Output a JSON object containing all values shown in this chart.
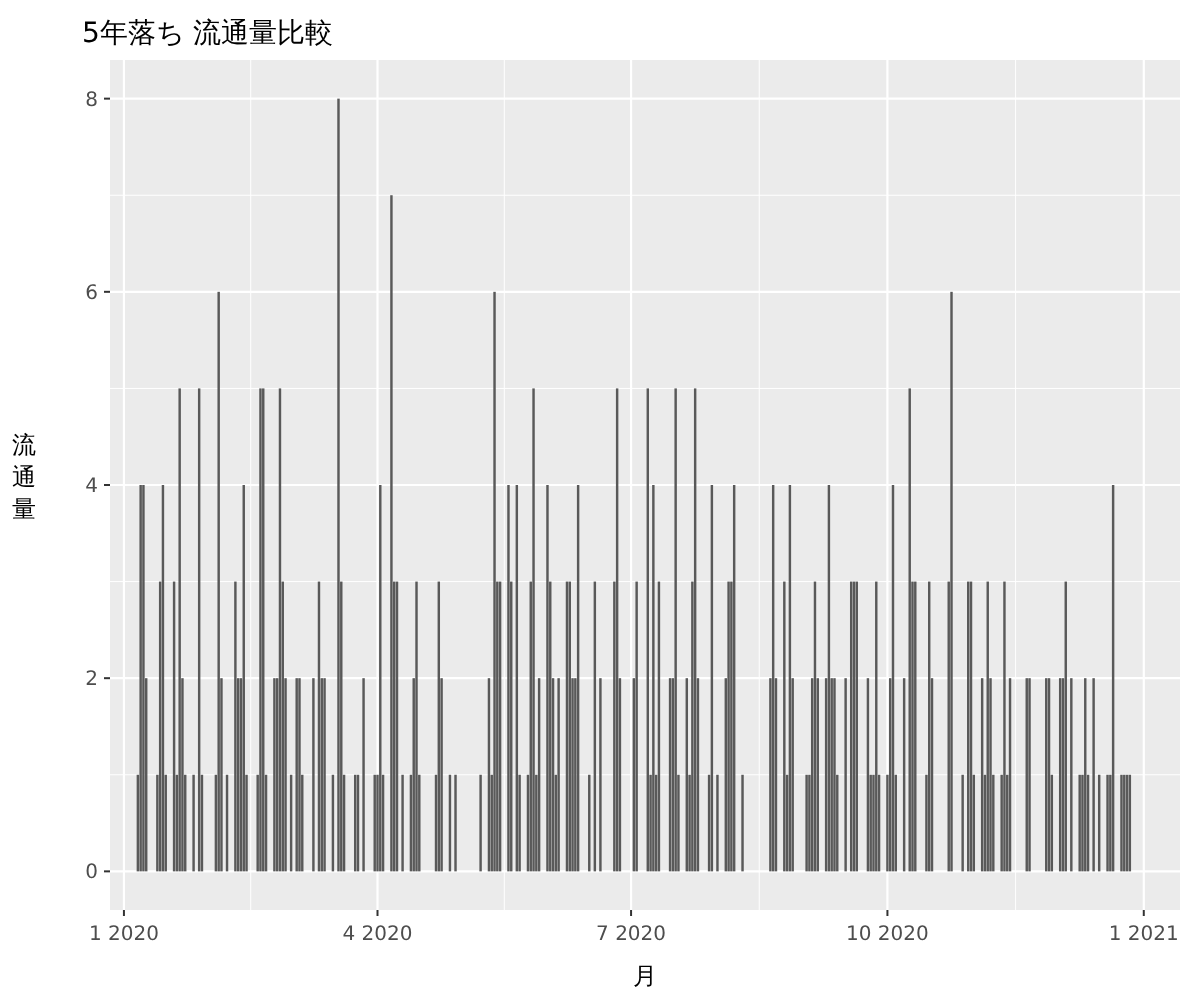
{
  "chart_data": {
    "type": "bar",
    "title": "5年落ち 流通量比較",
    "xlabel": "月",
    "ylabel": "流通量",
    "color": "#595959",
    "grid": true,
    "xlim": [
      "2019-12-27",
      "2021-01-14"
    ],
    "xticks": [
      {
        "value": "2020-01-01",
        "label": "1 2020"
      },
      {
        "value": "2020-04-01",
        "label": "4 2020"
      },
      {
        "value": "2020-07-01",
        "label": "7 2020"
      },
      {
        "value": "2020-10-01",
        "label": "10 2020"
      },
      {
        "value": "2021-01-01",
        "label": "1 2021"
      }
    ],
    "ylim": [
      -0.4,
      8.4
    ],
    "yticks": [
      0,
      2,
      4,
      6,
      8
    ],
    "x": [
      "2020-01-06",
      "2020-01-07",
      "2020-01-08",
      "2020-01-09",
      "2020-01-13",
      "2020-01-14",
      "2020-01-15",
      "2020-01-16",
      "2020-01-19",
      "2020-01-20",
      "2020-01-21",
      "2020-01-22",
      "2020-01-23",
      "2020-01-26",
      "2020-01-28",
      "2020-01-29",
      "2020-02-03",
      "2020-02-04",
      "2020-02-05",
      "2020-02-07",
      "2020-02-10",
      "2020-02-11",
      "2020-02-12",
      "2020-02-13",
      "2020-02-14",
      "2020-02-18",
      "2020-02-19",
      "2020-02-20",
      "2020-02-21",
      "2020-02-24",
      "2020-02-25",
      "2020-02-26",
      "2020-02-27",
      "2020-02-28",
      "2020-03-01",
      "2020-03-03",
      "2020-03-04",
      "2020-03-05",
      "2020-03-09",
      "2020-03-11",
      "2020-03-12",
      "2020-03-13",
      "2020-03-16",
      "2020-03-18",
      "2020-03-19",
      "2020-03-20",
      "2020-03-24",
      "2020-03-25",
      "2020-03-27",
      "2020-03-31",
      "2020-04-01",
      "2020-04-02",
      "2020-04-03",
      "2020-04-06",
      "2020-04-07",
      "2020-04-08",
      "2020-04-10",
      "2020-04-13",
      "2020-04-14",
      "2020-04-15",
      "2020-04-16",
      "2020-04-22",
      "2020-04-23",
      "2020-04-24",
      "2020-04-27",
      "2020-04-29",
      "2020-05-08",
      "2020-05-11",
      "2020-05-12",
      "2020-05-13",
      "2020-05-14",
      "2020-05-15",
      "2020-05-18",
      "2020-05-19",
      "2020-05-21",
      "2020-05-22",
      "2020-05-25",
      "2020-05-26",
      "2020-05-27",
      "2020-05-28",
      "2020-05-29",
      "2020-06-01",
      "2020-06-02",
      "2020-06-03",
      "2020-06-04",
      "2020-06-05",
      "2020-06-08",
      "2020-06-09",
      "2020-06-10",
      "2020-06-11",
      "2020-06-12",
      "2020-06-16",
      "2020-06-18",
      "2020-06-20",
      "2020-06-25",
      "2020-06-26",
      "2020-06-27",
      "2020-07-02",
      "2020-07-03",
      "2020-07-07",
      "2020-07-08",
      "2020-07-09",
      "2020-07-10",
      "2020-07-11",
      "2020-07-15",
      "2020-07-16",
      "2020-07-17",
      "2020-07-18",
      "2020-07-21",
      "2020-07-22",
      "2020-07-23",
      "2020-07-24",
      "2020-07-25",
      "2020-07-29",
      "2020-07-30",
      "2020-08-01",
      "2020-08-04",
      "2020-08-05",
      "2020-08-06",
      "2020-08-07",
      "2020-08-10",
      "2020-08-20",
      "2020-08-21",
      "2020-08-22",
      "2020-08-25",
      "2020-08-26",
      "2020-08-27",
      "2020-08-28",
      "2020-09-02",
      "2020-09-03",
      "2020-09-04",
      "2020-09-05",
      "2020-09-06",
      "2020-09-09",
      "2020-09-10",
      "2020-09-11",
      "2020-09-12",
      "2020-09-13",
      "2020-09-16",
      "2020-09-18",
      "2020-09-19",
      "2020-09-20",
      "2020-09-24",
      "2020-09-25",
      "2020-09-26",
      "2020-09-27",
      "2020-09-28",
      "2020-10-01",
      "2020-10-02",
      "2020-10-03",
      "2020-10-04",
      "2020-10-07",
      "2020-10-09",
      "2020-10-10",
      "2020-10-11",
      "2020-10-15",
      "2020-10-16",
      "2020-10-17",
      "2020-10-23",
      "2020-10-24",
      "2020-10-28",
      "2020-10-30",
      "2020-10-31",
      "2020-11-01",
      "2020-11-04",
      "2020-11-05",
      "2020-11-06",
      "2020-11-07",
      "2020-11-08",
      "2020-11-11",
      "2020-11-12",
      "2020-11-13",
      "2020-11-14",
      "2020-11-20",
      "2020-11-21",
      "2020-11-27",
      "2020-11-28",
      "2020-11-29",
      "2020-12-02",
      "2020-12-03",
      "2020-12-04",
      "2020-12-06",
      "2020-12-09",
      "2020-12-10",
      "2020-12-11",
      "2020-12-12",
      "2020-12-14",
      "2020-12-16",
      "2020-12-19",
      "2020-12-20",
      "2020-12-21",
      "2020-12-24",
      "2020-12-25",
      "2020-12-26",
      "2020-12-27"
    ],
    "values": [
      1,
      4,
      4,
      2,
      1,
      3,
      4,
      1,
      3,
      1,
      5,
      2,
      1,
      1,
      5,
      1,
      1,
      6,
      2,
      1,
      3,
      2,
      2,
      4,
      1,
      1,
      5,
      5,
      1,
      2,
      2,
      5,
      3,
      2,
      1,
      2,
      2,
      1,
      2,
      3,
      2,
      2,
      1,
      8,
      3,
      1,
      1,
      1,
      2,
      1,
      1,
      4,
      1,
      7,
      3,
      3,
      1,
      1,
      2,
      3,
      1,
      1,
      3,
      2,
      1,
      1,
      1,
      2,
      1,
      6,
      3,
      3,
      4,
      3,
      4,
      1,
      1,
      3,
      5,
      1,
      2,
      4,
      3,
      2,
      1,
      2,
      3,
      3,
      2,
      2,
      4,
      1,
      3,
      2,
      3,
      5,
      2,
      2,
      3,
      5,
      1,
      4,
      1,
      3,
      2,
      2,
      5,
      1,
      2,
      1,
      3,
      5,
      2,
      1,
      4,
      1,
      2,
      3,
      3,
      4,
      1,
      2,
      4,
      2,
      3,
      1,
      4,
      2,
      1,
      1,
      2,
      3,
      2,
      2,
      4,
      2,
      2,
      1,
      2,
      3,
      3,
      3,
      2,
      1,
      1,
      3,
      1,
      1,
      2,
      4,
      1,
      2,
      5,
      3,
      3,
      1,
      3,
      2,
      3,
      6,
      1,
      3,
      3,
      1,
      2,
      1,
      3,
      2,
      1,
      1,
      3,
      1,
      2,
      2,
      2,
      2,
      2,
      1,
      2,
      2,
      3,
      2,
      1,
      1,
      2,
      1,
      2,
      1,
      1,
      1,
      4,
      1,
      1,
      1,
      1
    ]
  }
}
